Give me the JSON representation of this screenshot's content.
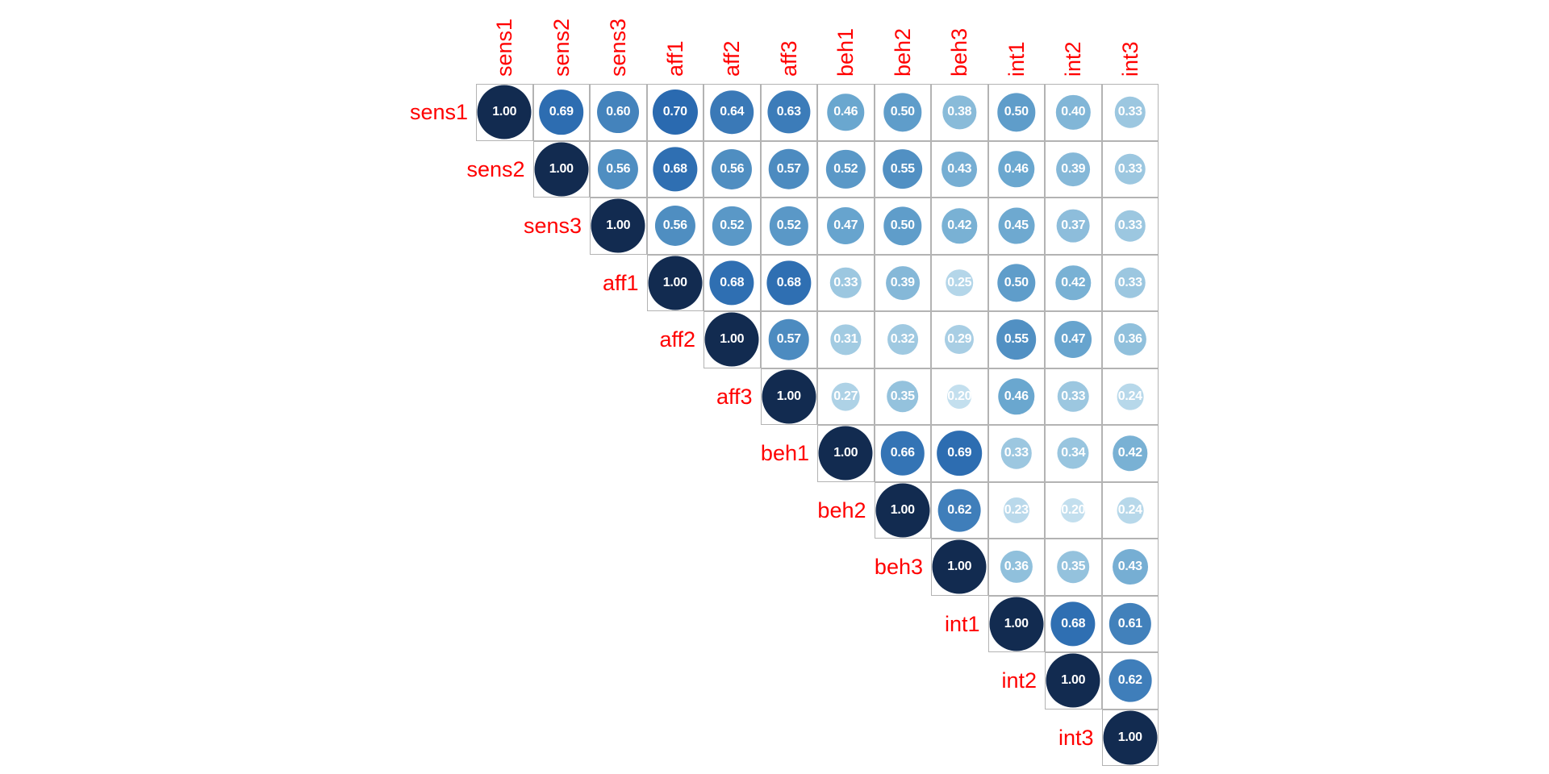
{
  "chart_data": {
    "type": "heatmap",
    "subtype": "correlation-matrix-upper-triangle",
    "title": "",
    "variables": [
      "sens1",
      "sens2",
      "sens3",
      "aff1",
      "aff2",
      "aff3",
      "beh1",
      "beh2",
      "beh3",
      "int1",
      "int2",
      "int3"
    ],
    "matrix_upper": [
      [
        1.0,
        0.69,
        0.6,
        0.7,
        0.64,
        0.63,
        0.46,
        0.5,
        0.38,
        0.5,
        0.4,
        0.33
      ],
      [
        null,
        1.0,
        0.56,
        0.68,
        0.56,
        0.57,
        0.52,
        0.55,
        0.43,
        0.46,
        0.39,
        0.33
      ],
      [
        null,
        null,
        1.0,
        0.56,
        0.52,
        0.52,
        0.47,
        0.5,
        0.42,
        0.45,
        0.37,
        0.33
      ],
      [
        null,
        null,
        null,
        1.0,
        0.68,
        0.68,
        0.33,
        0.39,
        0.25,
        0.5,
        0.42,
        0.33
      ],
      [
        null,
        null,
        null,
        null,
        1.0,
        0.57,
        0.31,
        0.32,
        0.29,
        0.55,
        0.47,
        0.36
      ],
      [
        null,
        null,
        null,
        null,
        null,
        1.0,
        0.27,
        0.35,
        0.2,
        0.46,
        0.33,
        0.24
      ],
      [
        null,
        null,
        null,
        null,
        null,
        null,
        1.0,
        0.66,
        0.69,
        0.33,
        0.34,
        0.42
      ],
      [
        null,
        null,
        null,
        null,
        null,
        null,
        null,
        1.0,
        0.62,
        0.23,
        0.2,
        0.24
      ],
      [
        null,
        null,
        null,
        null,
        null,
        null,
        null,
        null,
        1.0,
        0.36,
        0.35,
        0.43
      ],
      [
        null,
        null,
        null,
        null,
        null,
        null,
        null,
        null,
        null,
        1.0,
        0.68,
        0.61
      ],
      [
        null,
        null,
        null,
        null,
        null,
        null,
        null,
        null,
        null,
        null,
        1.0,
        0.62
      ],
      [
        null,
        null,
        null,
        null,
        null,
        null,
        null,
        null,
        null,
        null,
        null,
        1.0
      ]
    ],
    "value_format_decimals": 2,
    "legend": "none",
    "grid": "on",
    "colors": {
      "label": "#ff0000",
      "value_text": "#ffffff",
      "grid_line": "#b3b3b3",
      "background": "#ffffff",
      "scale_stops": [
        {
          "r": 0.2,
          "color": "#c3dfee"
        },
        {
          "r": 0.33,
          "color": "#9cc7e0"
        },
        {
          "r": 0.46,
          "color": "#6aa7cf"
        },
        {
          "r": 0.57,
          "color": "#4c8bc0"
        },
        {
          "r": 0.7,
          "color": "#2a6ab0"
        },
        {
          "r": 1.0,
          "color": "#122b50"
        }
      ]
    }
  }
}
